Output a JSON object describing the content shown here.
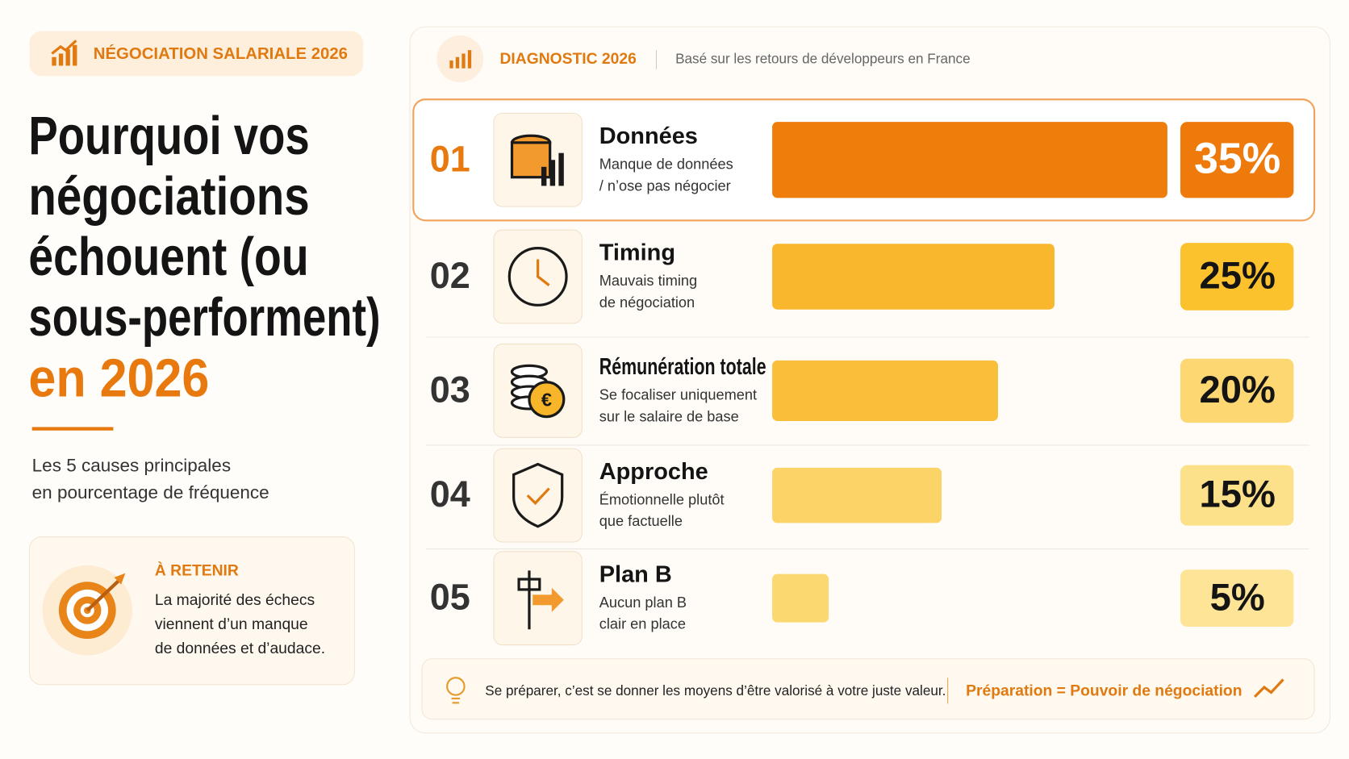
{
  "badge": "NÉGOCIATION SALARIALE 2026",
  "headline": [
    "Pourquoi vos",
    "négociations",
    "échouent (ou",
    "sous-performent)"
  ],
  "headline_highlight": "en 2026",
  "subtitle": [
    "Les 5 causes principales",
    "en pourcentage de fréquence"
  ],
  "takeaway": {
    "title": "À RETENIR",
    "lines": [
      "La majorité des échecs",
      "viennent d’un manque",
      "de données et d’audace."
    ]
  },
  "panel": {
    "title": "DIAGNOSTIC 2026",
    "subtitle": "Basé sur les retours de développeurs en France"
  },
  "footer": {
    "text": "Se préparer, c’est se donner les moyens d’être valorisé à votre juste valeur.",
    "highlight": "Préparation = Pouvoir de négociation"
  },
  "chart_data": {
    "type": "bar",
    "orientation": "horizontal",
    "numbers": [
      "01",
      "02",
      "03",
      "04",
      "05"
    ],
    "categories": [
      "Données",
      "Timing",
      "Rémunération totale",
      "Approche",
      "Plan B"
    ],
    "descriptions": [
      [
        "Manque de données",
        "/ n’ose pas négocier"
      ],
      [
        "Mauvais timing",
        "de négociation"
      ],
      [
        "Se focaliser uniquement",
        "sur le salaire de base"
      ],
      [
        "Émotionnelle plutôt",
        "que factuelle"
      ],
      [
        "Aucun plan B",
        "clair en place"
      ]
    ],
    "values": [
      35,
      25,
      20,
      15,
      5
    ],
    "value_labels": [
      "35%",
      "25%",
      "20%",
      "15%",
      "5%"
    ],
    "colors": [
      "#ef7d0b",
      "#f8b72c",
      "#f9be3a",
      "#fbd366",
      "#fcd970"
    ],
    "label_colors": [
      "#ee7a0c",
      "#fcc22d",
      "#fdd772",
      "#fde08a",
      "#fde496"
    ]
  }
}
